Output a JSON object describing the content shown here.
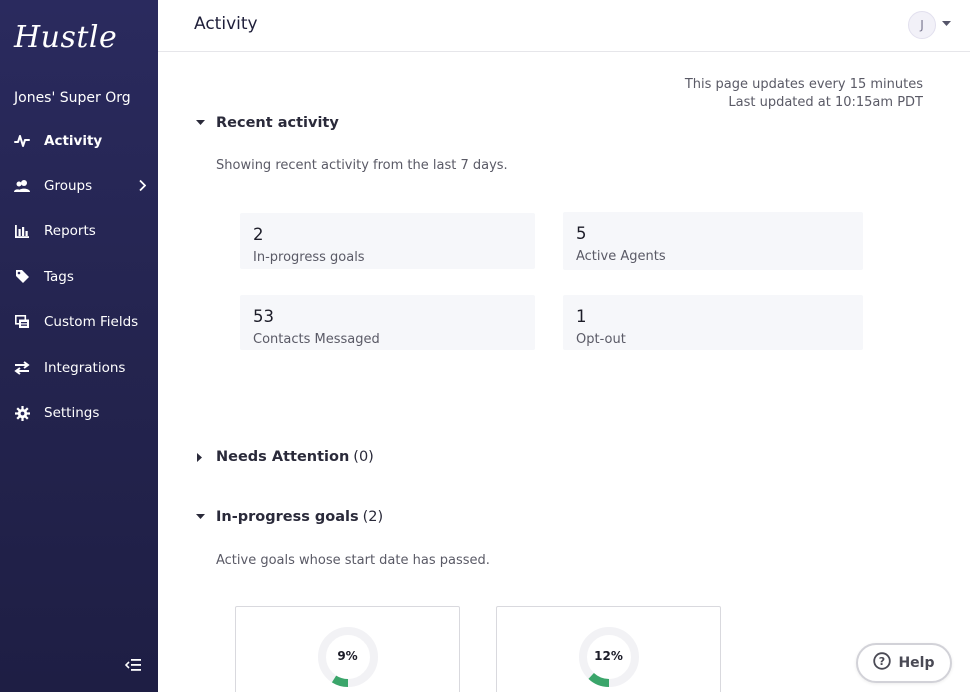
{
  "sidebar": {
    "logo": "Hustle",
    "org_name": "Jones' Super Org",
    "items": [
      {
        "label": "Activity",
        "icon": "activity-icon",
        "active": true
      },
      {
        "label": "Groups",
        "icon": "groups-icon",
        "has_children": true
      },
      {
        "label": "Reports",
        "icon": "reports-icon"
      },
      {
        "label": "Tags",
        "icon": "tag-icon"
      },
      {
        "label": "Custom Fields",
        "icon": "custom-fields-icon"
      },
      {
        "label": "Integrations",
        "icon": "integrations-icon"
      },
      {
        "label": "Settings",
        "icon": "gear-icon"
      }
    ]
  },
  "header": {
    "title": "Activity",
    "avatar_initial": "J"
  },
  "update_info": {
    "frequency": "This page updates every 15 minutes",
    "last_updated": "Last updated at 10:15am PDT"
  },
  "recent_activity": {
    "title": "Recent activity",
    "description": "Showing recent activity from the last 7 days.",
    "stats": [
      {
        "value": "2",
        "label": "In-progress goals"
      },
      {
        "value": "5",
        "label": "Active Agents"
      },
      {
        "value": "53",
        "label": "Contacts Messaged"
      },
      {
        "value": "1",
        "label": "Opt-out"
      }
    ]
  },
  "needs_attention": {
    "title": "Needs Attention",
    "count": "(0)"
  },
  "in_progress_goals": {
    "title": "In-progress goals",
    "count": "(2)",
    "description": "Active goals whose start date has passed.",
    "goals": [
      {
        "percent_label": "9%",
        "progress": 0.09
      },
      {
        "percent_label": "12%",
        "progress": 0.12
      }
    ]
  },
  "help": {
    "label": "Help"
  },
  "colors": {
    "sidebar_bg": "#26265a",
    "progress": "#3aa56a",
    "card_bg": "#f6f7fa"
  }
}
